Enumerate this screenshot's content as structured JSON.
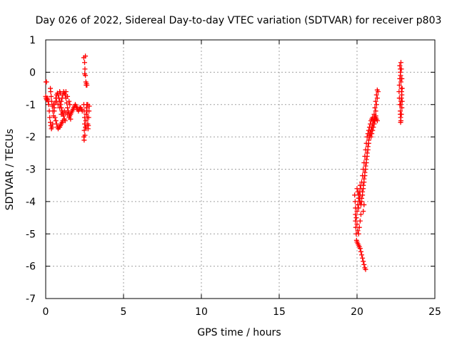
{
  "chart_data": {
    "type": "scatter",
    "title": "Day 026 of 2022, Sidereal Day-to-day VTEC variation (SDTVAR) for receiver p803",
    "xlabel": "GPS time / hours",
    "ylabel": "SDTVAR / TECUs",
    "xlim": [
      0,
      25
    ],
    "ylim": [
      -7,
      1
    ],
    "xticks": [
      0,
      5,
      10,
      15,
      20,
      25
    ],
    "yticks": [
      -7,
      -6,
      -5,
      -4,
      -3,
      -2,
      -1,
      0,
      1
    ],
    "grid": true,
    "marker": "+",
    "color": "#ff0000",
    "series": [
      {
        "name": "SDTVAR",
        "points": [
          [
            0.02,
            -0.3
          ],
          [
            0.05,
            -0.3
          ],
          [
            0.0,
            -0.75
          ],
          [
            0.03,
            -0.8
          ],
          [
            0.06,
            -0.85
          ],
          [
            0.1,
            -0.8
          ],
          [
            0.13,
            -0.85
          ],
          [
            0.16,
            -0.9
          ],
          [
            0.2,
            -1.0
          ],
          [
            0.23,
            -1.2
          ],
          [
            0.26,
            -1.4
          ],
          [
            0.3,
            -1.55
          ],
          [
            0.33,
            -1.65
          ],
          [
            0.37,
            -1.75
          ],
          [
            0.41,
            -1.7
          ],
          [
            0.45,
            -1.6
          ],
          [
            0.3,
            -0.5
          ],
          [
            0.32,
            -0.6
          ],
          [
            0.35,
            -0.75
          ],
          [
            0.38,
            -0.9
          ],
          [
            0.42,
            -1.05
          ],
          [
            0.46,
            -1.2
          ],
          [
            0.5,
            -1.35
          ],
          [
            0.55,
            -1.1
          ],
          [
            0.6,
            -0.95
          ],
          [
            0.65,
            -0.8
          ],
          [
            0.7,
            -0.7
          ],
          [
            0.75,
            -0.65
          ],
          [
            0.8,
            -0.7
          ],
          [
            0.85,
            -0.8
          ],
          [
            0.9,
            -0.9
          ],
          [
            0.95,
            -1.0
          ],
          [
            1.0,
            -1.1
          ],
          [
            1.05,
            -1.2
          ],
          [
            1.1,
            -1.3
          ],
          [
            1.15,
            -1.35
          ],
          [
            1.2,
            -1.45
          ],
          [
            1.25,
            -1.5
          ],
          [
            0.5,
            -1.0
          ],
          [
            0.55,
            -1.2
          ],
          [
            0.6,
            -1.4
          ],
          [
            0.65,
            -1.5
          ],
          [
            0.7,
            -1.6
          ],
          [
            0.75,
            -1.7
          ],
          [
            0.8,
            -1.75
          ],
          [
            0.85,
            -1.7
          ],
          [
            0.9,
            -1.7
          ],
          [
            0.95,
            -1.65
          ],
          [
            1.0,
            -1.6
          ],
          [
            1.05,
            -1.55
          ],
          [
            1.1,
            -1.5
          ],
          [
            0.7,
            -0.9
          ],
          [
            0.8,
            -1.0
          ],
          [
            0.9,
            -1.1
          ],
          [
            1.0,
            -0.9
          ],
          [
            1.05,
            -0.8
          ],
          [
            1.1,
            -0.7
          ],
          [
            1.15,
            -0.6
          ],
          [
            1.2,
            -0.65
          ],
          [
            1.25,
            -0.7
          ],
          [
            1.3,
            -0.8
          ],
          [
            1.35,
            -0.95
          ],
          [
            1.4,
            -1.1
          ],
          [
            1.45,
            -1.2
          ],
          [
            1.5,
            -1.3
          ],
          [
            1.55,
            -1.35
          ],
          [
            1.6,
            -1.3
          ],
          [
            1.65,
            -1.25
          ],
          [
            1.7,
            -1.2
          ],
          [
            1.75,
            -1.15
          ],
          [
            1.8,
            -1.1
          ],
          [
            1.85,
            -1.05
          ],
          [
            1.9,
            -1.0
          ],
          [
            1.95,
            -1.05
          ],
          [
            2.0,
            -1.1
          ],
          [
            2.05,
            -1.15
          ],
          [
            2.1,
            -1.2
          ],
          [
            2.15,
            -1.15
          ],
          [
            2.2,
            -1.1
          ],
          [
            2.25,
            -1.1
          ],
          [
            2.3,
            -1.15
          ],
          [
            2.35,
            -1.2
          ],
          [
            1.0,
            -1.3
          ],
          [
            1.1,
            -1.25
          ],
          [
            1.2,
            -1.2
          ],
          [
            1.3,
            -1.25
          ],
          [
            1.4,
            -1.3
          ],
          [
            1.5,
            -1.4
          ],
          [
            1.6,
            -1.45
          ],
          [
            0.9,
            -0.6
          ],
          [
            0.95,
            -0.65
          ],
          [
            1.3,
            -0.6
          ],
          [
            1.4,
            -0.75
          ],
          [
            1.5,
            -0.9
          ],
          [
            1.55,
            -1.0
          ],
          [
            2.45,
            0.45
          ],
          [
            2.5,
            0.3
          ],
          [
            2.52,
            0.1
          ],
          [
            2.55,
            -0.1
          ],
          [
            2.58,
            -0.3
          ],
          [
            2.6,
            -0.4
          ],
          [
            2.55,
            0.5
          ],
          [
            2.5,
            -0.05
          ],
          [
            2.62,
            -0.35
          ],
          [
            2.65,
            -0.4
          ],
          [
            2.45,
            -1.0
          ],
          [
            2.47,
            -1.2
          ],
          [
            2.5,
            -1.4
          ],
          [
            2.5,
            -1.6
          ],
          [
            2.48,
            -1.8
          ],
          [
            2.45,
            -2.0
          ],
          [
            2.47,
            -2.1
          ],
          [
            2.52,
            -1.95
          ],
          [
            2.55,
            -1.7
          ],
          [
            2.58,
            -1.5
          ],
          [
            2.6,
            -1.3
          ],
          [
            2.62,
            -1.1
          ],
          [
            2.64,
            -1.0
          ],
          [
            2.66,
            -1.2
          ],
          [
            2.68,
            -1.4
          ],
          [
            2.7,
            -1.6
          ],
          [
            2.72,
            -1.75
          ],
          [
            2.74,
            -1.65
          ],
          [
            2.76,
            -1.4
          ],
          [
            2.78,
            -1.2
          ],
          [
            2.8,
            -1.05
          ],
          [
            2.6,
            -1.7
          ],
          [
            2.7,
            -1.0
          ],
          [
            19.85,
            -3.8
          ],
          [
            19.88,
            -4.0
          ],
          [
            19.9,
            -4.2
          ],
          [
            19.9,
            -4.4
          ],
          [
            19.9,
            -4.6
          ],
          [
            19.92,
            -4.8
          ],
          [
            19.95,
            -5.0
          ],
          [
            19.97,
            -5.2
          ],
          [
            20.0,
            -5.25
          ],
          [
            20.05,
            -5.3
          ],
          [
            20.1,
            -5.35
          ],
          [
            20.15,
            -5.4
          ],
          [
            20.2,
            -5.45
          ],
          [
            20.25,
            -5.55
          ],
          [
            20.3,
            -5.65
          ],
          [
            20.35,
            -5.75
          ],
          [
            20.4,
            -5.85
          ],
          [
            20.45,
            -5.95
          ],
          [
            20.5,
            -6.05
          ],
          [
            20.55,
            -6.1
          ],
          [
            19.95,
            -4.5
          ],
          [
            20.0,
            -4.7
          ],
          [
            20.05,
            -4.9
          ],
          [
            20.1,
            -5.0
          ],
          [
            20.15,
            -4.8
          ],
          [
            20.2,
            -4.6
          ],
          [
            20.25,
            -4.4
          ],
          [
            20.0,
            -3.6
          ],
          [
            20.05,
            -3.7
          ],
          [
            20.1,
            -3.8
          ],
          [
            20.15,
            -3.9
          ],
          [
            20.2,
            -4.0
          ],
          [
            20.25,
            -4.1
          ],
          [
            20.3,
            -4.0
          ],
          [
            20.35,
            -3.8
          ],
          [
            20.4,
            -3.6
          ],
          [
            20.45,
            -3.4
          ],
          [
            20.5,
            -3.2
          ],
          [
            20.55,
            -3.0
          ],
          [
            20.6,
            -2.8
          ],
          [
            20.65,
            -2.6
          ],
          [
            20.7,
            -2.4
          ],
          [
            20.75,
            -2.2
          ],
          [
            20.8,
            -2.0
          ],
          [
            20.85,
            -1.9
          ],
          [
            20.9,
            -1.8
          ],
          [
            20.95,
            -1.7
          ],
          [
            21.0,
            -1.6
          ],
          [
            21.05,
            -1.5
          ],
          [
            21.1,
            -1.45
          ],
          [
            21.15,
            -1.4
          ],
          [
            21.2,
            -1.35
          ],
          [
            20.1,
            -4.2
          ],
          [
            20.15,
            -4.0
          ],
          [
            20.2,
            -3.8
          ],
          [
            20.25,
            -3.6
          ],
          [
            20.3,
            -3.4
          ],
          [
            20.35,
            -3.2
          ],
          [
            20.4,
            -3.0
          ],
          [
            20.45,
            -2.8
          ],
          [
            20.5,
            -2.6
          ],
          [
            20.55,
            -2.4
          ],
          [
            20.6,
            -2.2
          ],
          [
            20.65,
            -2.0
          ],
          [
            20.7,
            -1.9
          ],
          [
            20.75,
            -1.8
          ],
          [
            20.8,
            -1.7
          ],
          [
            20.85,
            -1.6
          ],
          [
            20.9,
            -1.5
          ],
          [
            20.95,
            -1.45
          ],
          [
            21.0,
            -1.4
          ],
          [
            20.3,
            -3.9
          ],
          [
            20.35,
            -3.7
          ],
          [
            20.4,
            -3.5
          ],
          [
            20.45,
            -3.3
          ],
          [
            20.5,
            -3.1
          ],
          [
            20.55,
            -2.9
          ],
          [
            20.6,
            -2.7
          ],
          [
            20.65,
            -2.5
          ],
          [
            20.7,
            -2.3
          ],
          [
            20.75,
            -2.1
          ],
          [
            20.8,
            -1.95
          ],
          [
            20.85,
            -1.85
          ],
          [
            20.9,
            -2.0
          ],
          [
            20.95,
            -1.9
          ],
          [
            21.0,
            -1.8
          ],
          [
            21.05,
            -1.7
          ],
          [
            21.1,
            -1.6
          ],
          [
            21.15,
            -1.5
          ],
          [
            21.2,
            -1.4
          ],
          [
            21.25,
            -1.45
          ],
          [
            21.3,
            -1.5
          ],
          [
            21.2,
            -1.2
          ],
          [
            21.25,
            -1.0
          ],
          [
            21.3,
            -0.8
          ],
          [
            21.35,
            -0.6
          ],
          [
            21.3,
            -0.55
          ],
          [
            21.1,
            -1.3
          ],
          [
            21.15,
            -1.1
          ],
          [
            21.2,
            -0.9
          ],
          [
            21.25,
            -0.7
          ],
          [
            20.0,
            -4.3
          ],
          [
            20.05,
            -4.1
          ],
          [
            20.1,
            -3.9
          ],
          [
            20.15,
            -3.7
          ],
          [
            20.2,
            -3.5
          ],
          [
            20.4,
            -4.3
          ],
          [
            20.45,
            -4.1
          ],
          [
            22.75,
            0.2
          ],
          [
            22.78,
            0.1
          ],
          [
            22.8,
            -0.1
          ],
          [
            22.82,
            -0.3
          ],
          [
            22.85,
            -0.5
          ],
          [
            22.88,
            -0.7
          ],
          [
            22.9,
            -0.9
          ],
          [
            22.88,
            -1.1
          ],
          [
            22.85,
            -1.3
          ],
          [
            22.82,
            -1.5
          ],
          [
            22.8,
            -1.4
          ],
          [
            22.78,
            -1.2
          ],
          [
            22.75,
            -1.0
          ],
          [
            22.72,
            -0.8
          ],
          [
            22.7,
            -0.6
          ],
          [
            22.72,
            -0.4
          ],
          [
            22.75,
            -0.2
          ],
          [
            22.78,
            0.0
          ],
          [
            22.82,
            0.3
          ],
          [
            22.85,
            0.1
          ],
          [
            22.88,
            -0.2
          ],
          [
            22.9,
            -0.5
          ],
          [
            22.85,
            -0.8
          ],
          [
            22.8,
            -1.0
          ],
          [
            22.78,
            -1.3
          ],
          [
            22.8,
            -1.55
          ],
          [
            22.82,
            -0.9
          ],
          [
            22.86,
            -0.6
          ]
        ]
      }
    ]
  }
}
